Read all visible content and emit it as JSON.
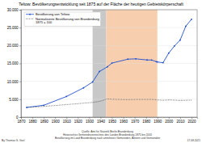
{
  "chart_data": {
    "type": "line",
    "title": "Teltow: Bevölkerungsentwicklung seit 1875 auf der Fläche der heutigen Gebietskörperschaft",
    "x": [
      1875,
      1890,
      1910,
      1925,
      1933,
      1939,
      1946,
      1950,
      1964,
      1971,
      1981,
      1985,
      1989,
      1990,
      1995,
      2000,
      2005,
      2010,
      2015,
      2020
    ],
    "series": [
      {
        "name": "Bevölkerung von Teltow",
        "color": "#1f4fd0",
        "marker": "circle",
        "line_style": "solid",
        "values": [
          2719,
          3311,
          5767,
          8176,
          9811,
          12740,
          14049,
          15095,
          16181,
          16285,
          15960,
          15950,
          15500,
          15411,
          15200,
          17894,
          19870,
          21500,
          25400,
          27300
        ]
      },
      {
        "name": "Normalisierte Bevölkerung von Brandenburg 1875 = 100",
        "color": "#333333",
        "marker": "none",
        "line_style": "dotted",
        "values": [
          2719,
          3000,
          3500,
          3900,
          4100,
          4400,
          5100,
          5000,
          4900,
          4950,
          4950,
          4950,
          4880,
          4800,
          4720,
          4820,
          4750,
          4650,
          4700,
          4750
        ]
      }
    ],
    "xlim": [
      1870,
      2025
    ],
    "xticks": [
      1870,
      1880,
      1890,
      1900,
      1910,
      1920,
      1930,
      1940,
      1950,
      1960,
      1970,
      1980,
      1990,
      2000,
      2010,
      2020
    ],
    "ylim": [
      0,
      30000
    ],
    "yticks": [
      0,
      {
        "value": 5000,
        "label": "5.000"
      },
      {
        "value": 10000,
        "label": "10.000"
      },
      {
        "value": 15000,
        "label": "15.000"
      },
      {
        "value": 20000,
        "label": "20.000"
      },
      {
        "value": 25000,
        "label": "25.000"
      },
      {
        "value": 30000,
        "label": "30.000"
      }
    ],
    "grid": true,
    "legend": "top-left",
    "shaded_periods": [
      {
        "start": 1933,
        "end": 1945,
        "color": "#c8c8c8"
      },
      {
        "start": 1945,
        "end": 1990,
        "color": "#f7cfae"
      }
    ],
    "annotations": [
      "By Thomas G. Graf",
      "Quelle: Amt für Statistik Berlin-Brandenburg",
      "Historisches Gemeindeverzeichnis des Landes Brandenburg 1875 bis 2005",
      "Bevölkerung im Land Brandenburg nach amtsfreien Gemeinden, Ämtern und Gemeinden",
      "17.08.2021"
    ]
  }
}
